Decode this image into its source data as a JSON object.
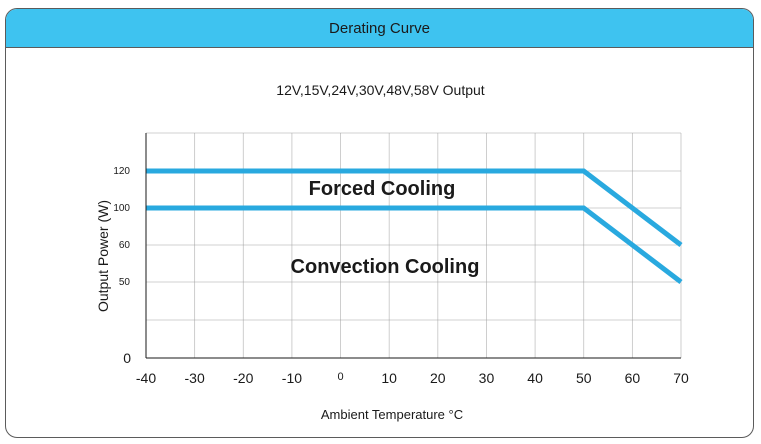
{
  "header": {
    "title": "Derating Curve"
  },
  "chart_data": {
    "type": "area",
    "title": "12V,15V,24V,30V,48V,58V Output",
    "xlabel": "Ambient Temperature °C",
    "xlabel_text": "Ambient Temperature ",
    "xlabel_unit": "°C",
    "ylabel": "Output Power (W)",
    "xlim": [
      -40,
      70
    ],
    "x_ticks": [
      -40,
      -30,
      -20,
      -10,
      0,
      10,
      20,
      30,
      40,
      50,
      60,
      70
    ],
    "y_ticks": [
      {
        "value": 120,
        "label": "120"
      },
      {
        "value": 100,
        "label": "100"
      },
      {
        "value": 60,
        "label": "60"
      },
      {
        "value": 50,
        "label": "50"
      },
      {
        "value": 0,
        "label": "0"
      }
    ],
    "grid": true,
    "series": [
      {
        "name": "Forced Cooling",
        "x": [
          -40,
          50,
          70
        ],
        "y": [
          120,
          120,
          60
        ],
        "color": "#29a9df",
        "fill": "#c4c4c4"
      },
      {
        "name": "Convection Cooling",
        "x": [
          -40,
          50,
          70
        ],
        "y": [
          100,
          100,
          50
        ],
        "color": "#29a9df",
        "fill": "#8a8a8a"
      }
    ]
  }
}
